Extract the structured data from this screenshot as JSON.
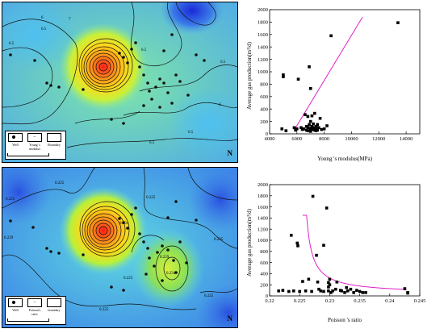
{
  "maps": [
    {
      "contour_labels": [
        "6.5",
        "6.5",
        "6",
        "7",
        "6.5",
        "6.5",
        "6",
        "6.5",
        "6.5"
      ],
      "legend": {
        "well": "Well",
        "property": "Young 's modulus",
        "boundary": "Boundary"
      },
      "north_symbol": "N"
    },
    {
      "contour_labels": [
        "0.225",
        "0.225",
        "0.229",
        "0.225",
        "0.231",
        "0.225",
        "0.229",
        "0.234",
        "0.225",
        "0.225",
        "0.225"
      ],
      "legend": {
        "well": "Well",
        "property": "Poisson's ratio",
        "boundary": "boundary"
      },
      "north_symbol": "N"
    }
  ],
  "chart_data": [
    {
      "type": "scatter",
      "title": "",
      "xlabel": "Young 's modulus(MPa)",
      "ylabel": "Average gas production(m³/d)",
      "xlim": [
        4000,
        15000
      ],
      "ylim": [
        0,
        2000
      ],
      "xticks": [
        4000,
        6000,
        8000,
        10000,
        12000,
        14000
      ],
      "yticks": [
        0,
        200,
        400,
        600,
        800,
        1000,
        1200,
        1400,
        1600,
        1800,
        2000
      ],
      "grid": false,
      "x": [
        4900,
        5000,
        5000,
        5200,
        5800,
        5900,
        6000,
        6100,
        6300,
        6400,
        6500,
        6600,
        6700,
        6700,
        6800,
        6800,
        6800,
        6900,
        6900,
        7000,
        7000,
        7000,
        7000,
        7000,
        7100,
        7100,
        7100,
        7200,
        7200,
        7200,
        7300,
        7300,
        7400,
        7400,
        7400,
        7500,
        7500,
        7600,
        7700,
        7800,
        8000,
        8200,
        8500,
        13400
      ],
      "y": [
        80,
        950,
        920,
        50,
        100,
        60,
        80,
        880,
        100,
        70,
        80,
        310,
        120,
        60,
        100,
        50,
        280,
        1080,
        150,
        90,
        40,
        200,
        730,
        60,
        120,
        90,
        290,
        70,
        160,
        100,
        60,
        330,
        120,
        50,
        90,
        60,
        150,
        100,
        250,
        70,
        80,
        130,
        1580,
        1790
      ],
      "trend_line": {
        "x": [
          5800,
          10800
        ],
        "y": [
          60,
          1880
        ]
      },
      "marker_color": "#000000",
      "trend_color": "#e020c8"
    },
    {
      "type": "scatter",
      "title": "",
      "xlabel": "Poisson 's ratio",
      "ylabel": "Average gas production(m³/d)",
      "xlim": [
        0.22,
        0.245
      ],
      "ylim": [
        0,
        2000
      ],
      "xticks": [
        0.22,
        0.225,
        0.23,
        0.235,
        0.24,
        0.245
      ],
      "yticks": [
        0,
        200,
        400,
        600,
        800,
        1000,
        1200,
        1400,
        1600,
        1800,
        2000
      ],
      "grid": false,
      "x": [
        0.2215,
        0.2222,
        0.2232,
        0.2236,
        0.224,
        0.2246,
        0.2247,
        0.225,
        0.2255,
        0.226,
        0.2265,
        0.227,
        0.2272,
        0.2278,
        0.228,
        0.2282,
        0.2285,
        0.229,
        0.229,
        0.2295,
        0.2298,
        0.2298,
        0.2298,
        0.23,
        0.23,
        0.2302,
        0.2305,
        0.231,
        0.2312,
        0.2318,
        0.232,
        0.2325,
        0.2328,
        0.233,
        0.2335,
        0.234,
        0.2345,
        0.235,
        0.2355,
        0.236,
        0.2425,
        0.243,
        0.243
      ],
      "y": [
        90,
        100,
        80,
        1090,
        90,
        950,
        900,
        80,
        260,
        90,
        300,
        80,
        1790,
        730,
        250,
        120,
        90,
        910,
        80,
        1580,
        240,
        90,
        160,
        300,
        200,
        60,
        90,
        120,
        250,
        100,
        90,
        60,
        150,
        90,
        120,
        60,
        100,
        80,
        60,
        60,
        130,
        60,
        50
      ],
      "trend_curve": {
        "type": "power",
        "x_start": 0.2255,
        "x_end": 0.2428
      },
      "marker_color": "#000000",
      "trend_color": "#e020c8"
    }
  ]
}
